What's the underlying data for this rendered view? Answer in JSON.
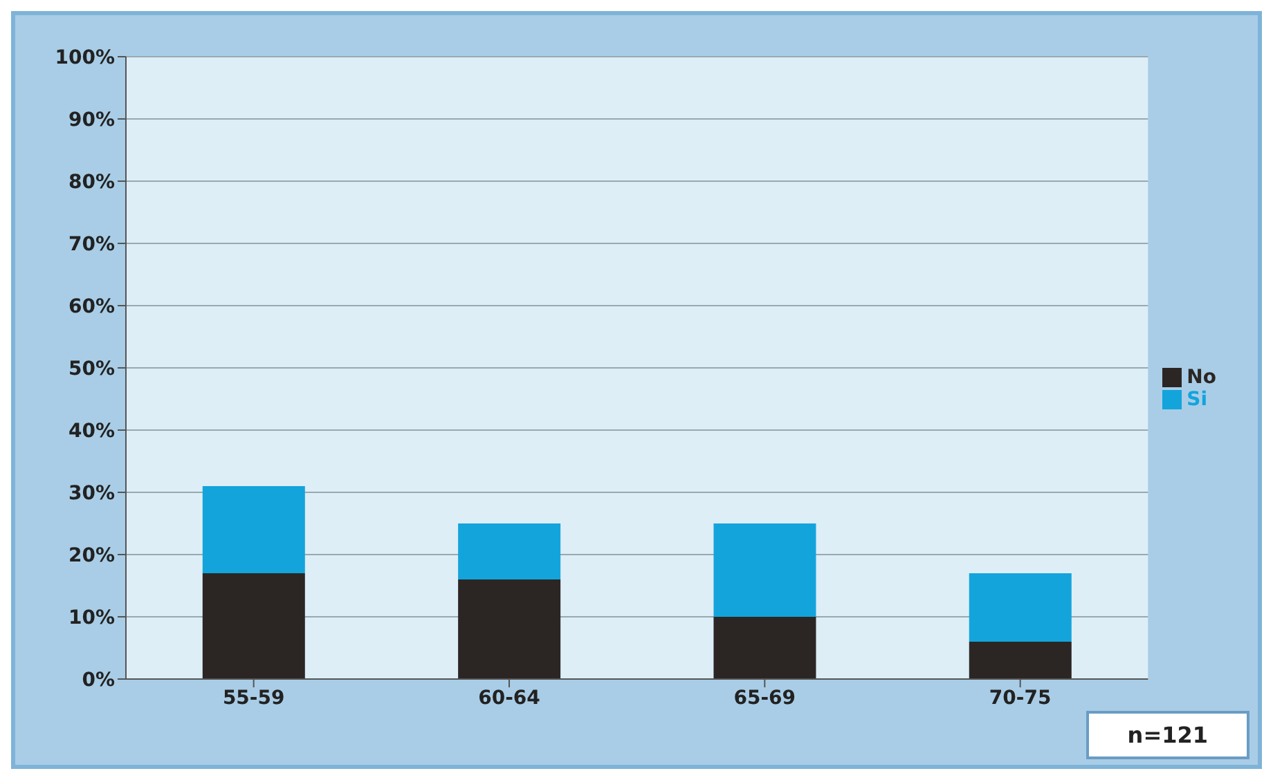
{
  "chart_data": {
    "type": "bar",
    "stacked": true,
    "categories": [
      "55-59",
      "60-64",
      "65-69",
      "70-75"
    ],
    "series": [
      {
        "name": "No",
        "color": "#2b2624",
        "values": [
          17,
          16,
          10,
          6
        ]
      },
      {
        "name": "Si",
        "color": "#14a4dc",
        "values": [
          14,
          9,
          15,
          11
        ]
      }
    ],
    "ylim": [
      0,
      100
    ],
    "yticks": [
      {
        "value": 0,
        "label": "0%"
      },
      {
        "value": 10,
        "label": "10%"
      },
      {
        "value": 20,
        "label": "20%"
      },
      {
        "value": 30,
        "label": "30%"
      },
      {
        "value": 40,
        "label": "40%"
      },
      {
        "value": 50,
        "label": "50%"
      },
      {
        "value": 60,
        "label": "60%"
      },
      {
        "value": 70,
        "label": "70%"
      },
      {
        "value": 80,
        "label": "80%"
      },
      {
        "value": 90,
        "label": "90%"
      },
      {
        "value": 100,
        "label": "100%"
      }
    ],
    "grid": "y",
    "legend": "right",
    "annotations": [
      "n=121"
    ]
  }
}
